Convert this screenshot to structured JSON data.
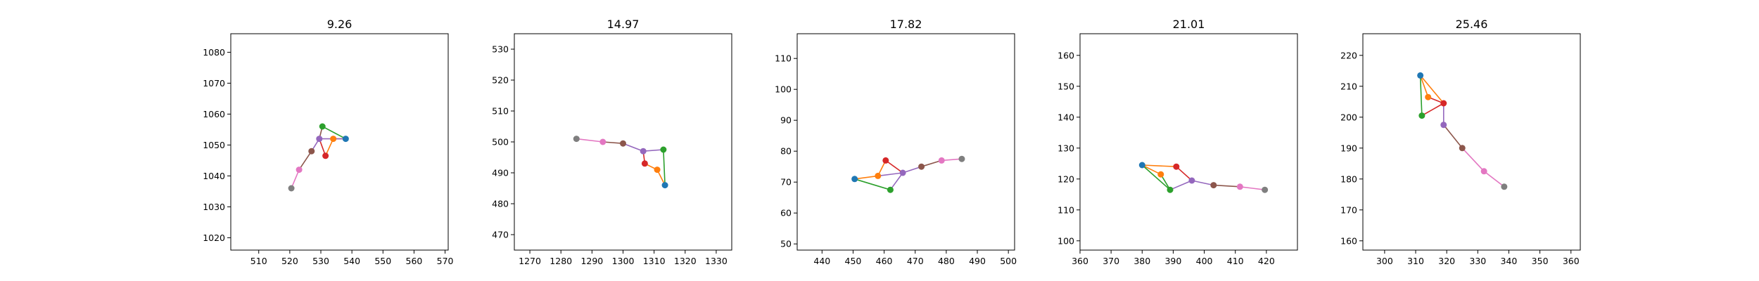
{
  "colors": {
    "c0": "#1f77b4",
    "c1": "#ff7f0e",
    "c2": "#2ca02c",
    "c3": "#d62728",
    "c4": "#9467bd",
    "c5": "#8c564b",
    "c6": "#e377c2",
    "c7": "#7f7f7f"
  },
  "chart_data": [
    {
      "type": "line",
      "title": "9.26",
      "xlim": [
        501,
        571
      ],
      "ylim": [
        1016,
        1086
      ],
      "xticks": [
        510,
        520,
        530,
        540,
        550,
        560,
        570
      ],
      "yticks": [
        1020,
        1030,
        1040,
        1050,
        1060,
        1070,
        1080
      ],
      "points": [
        [
          538,
          1052
        ],
        [
          534,
          1052
        ],
        [
          530.5,
          1056
        ],
        [
          531.5,
          1046.5
        ],
        [
          529.5,
          1052
        ],
        [
          527,
          1048
        ],
        [
          523,
          1042
        ],
        [
          520.5,
          1036
        ]
      ],
      "segments": [
        [
          0,
          1,
          "c1"
        ],
        [
          0,
          2,
          "c2"
        ],
        [
          1,
          3,
          "c1"
        ],
        [
          3,
          4,
          "c3"
        ],
        [
          4,
          5,
          "c4"
        ],
        [
          5,
          6,
          "c5"
        ],
        [
          6,
          7,
          "c6"
        ],
        [
          2,
          4,
          "c5"
        ],
        [
          4,
          0,
          "c4"
        ]
      ]
    },
    {
      "type": "line",
      "title": "14.97",
      "xlim": [
        1265,
        1335
      ],
      "ylim": [
        465,
        535
      ],
      "xticks": [
        1270,
        1280,
        1290,
        1300,
        1310,
        1320,
        1330
      ],
      "yticks": [
        470,
        480,
        490,
        500,
        510,
        520,
        530
      ],
      "points": [
        [
          1313.5,
          486
        ],
        [
          1311,
          491
        ],
        [
          1313,
          497.5
        ],
        [
          1307,
          493
        ],
        [
          1306.5,
          497
        ],
        [
          1300,
          499.5
        ],
        [
          1293.5,
          500
        ],
        [
          1285,
          501
        ]
      ],
      "segments": [
        [
          0,
          1,
          "c1"
        ],
        [
          0,
          2,
          "c2"
        ],
        [
          1,
          3,
          "c1"
        ],
        [
          3,
          4,
          "c3"
        ],
        [
          4,
          5,
          "c4"
        ],
        [
          5,
          6,
          "c5"
        ],
        [
          6,
          7,
          "c6"
        ],
        [
          4,
          2,
          "c4"
        ]
      ]
    },
    {
      "type": "line",
      "title": "17.82",
      "xlim": [
        432,
        502
      ],
      "ylim": [
        48,
        118
      ],
      "xticks": [
        440,
        450,
        460,
        470,
        480,
        490,
        500
      ],
      "yticks": [
        50,
        60,
        70,
        80,
        90,
        100,
        110
      ],
      "points": [
        [
          450.5,
          71
        ],
        [
          458,
          72
        ],
        [
          462,
          67.5
        ],
        [
          460.5,
          77
        ],
        [
          466,
          73
        ],
        [
          472,
          75
        ],
        [
          478.5,
          77
        ],
        [
          485,
          77.5
        ]
      ],
      "segments": [
        [
          0,
          1,
          "c1"
        ],
        [
          0,
          2,
          "c2"
        ],
        [
          1,
          3,
          "c1"
        ],
        [
          3,
          4,
          "c3"
        ],
        [
          4,
          5,
          "c4"
        ],
        [
          5,
          6,
          "c5"
        ],
        [
          6,
          7,
          "c6"
        ],
        [
          2,
          4,
          "c4"
        ],
        [
          1,
          4,
          "c4"
        ]
      ]
    },
    {
      "type": "line",
      "title": "21.01",
      "xlim": [
        360,
        430
      ],
      "ylim": [
        97,
        167
      ],
      "xticks": [
        360,
        370,
        380,
        390,
        400,
        410,
        420
      ],
      "yticks": [
        100,
        110,
        120,
        130,
        140,
        150,
        160
      ],
      "points": [
        [
          380,
          124.5
        ],
        [
          386,
          121.5
        ],
        [
          389,
          116.5
        ],
        [
          391,
          124
        ],
        [
          396,
          119.5
        ],
        [
          403,
          118
        ],
        [
          411.5,
          117.5
        ],
        [
          419.5,
          116.5
        ]
      ],
      "segments": [
        [
          0,
          1,
          "c1"
        ],
        [
          0,
          2,
          "c2"
        ],
        [
          0,
          3,
          "c1"
        ],
        [
          3,
          4,
          "c3"
        ],
        [
          4,
          5,
          "c4"
        ],
        [
          5,
          6,
          "c5"
        ],
        [
          6,
          7,
          "c6"
        ],
        [
          2,
          4,
          "c4"
        ],
        [
          1,
          2,
          "c2"
        ]
      ]
    },
    {
      "type": "line",
      "title": "25.46",
      "xlim": [
        293,
        363
      ],
      "ylim": [
        157,
        227
      ],
      "xticks": [
        300,
        310,
        320,
        330,
        340,
        350,
        360
      ],
      "yticks": [
        160,
        170,
        180,
        190,
        200,
        210,
        220
      ],
      "points": [
        [
          311.5,
          213.5
        ],
        [
          314,
          206.5
        ],
        [
          312,
          200.5
        ],
        [
          319,
          204.5
        ],
        [
          319,
          197.5
        ],
        [
          325,
          190
        ],
        [
          332,
          182.5
        ],
        [
          338.5,
          177.5
        ]
      ],
      "segments": [
        [
          0,
          1,
          "c1"
        ],
        [
          0,
          2,
          "c2"
        ],
        [
          0,
          3,
          "c1"
        ],
        [
          1,
          3,
          "c3"
        ],
        [
          2,
          3,
          "c3"
        ],
        [
          3,
          4,
          "c4"
        ],
        [
          4,
          5,
          "c5"
        ],
        [
          5,
          6,
          "c6"
        ],
        [
          6,
          7,
          "c6"
        ]
      ]
    }
  ]
}
